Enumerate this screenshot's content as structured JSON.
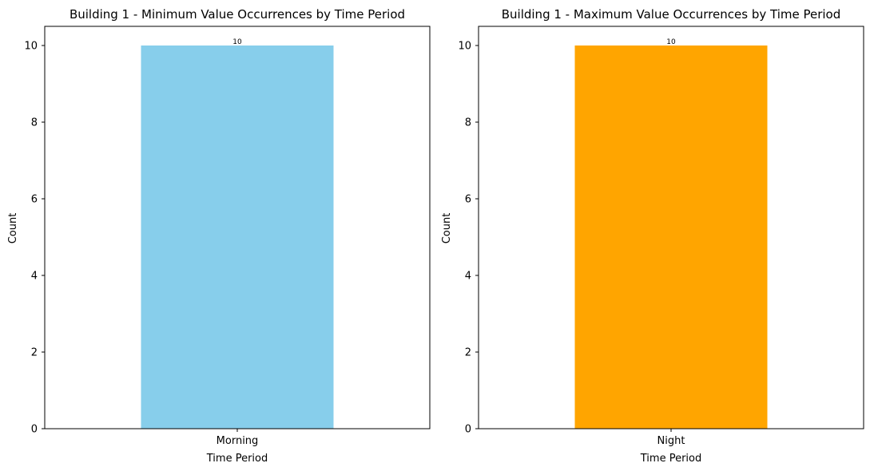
{
  "chart_data": [
    {
      "type": "bar",
      "title": "Building 1 - Minimum Value Occurrences by Time Period",
      "xlabel": "Time Period",
      "ylabel": "Count",
      "categories": [
        "Morning"
      ],
      "values": [
        10
      ],
      "data_labels": [
        "10"
      ],
      "ylim": [
        0,
        10.5
      ],
      "yticks": [
        0,
        2,
        4,
        6,
        8,
        10
      ],
      "bar_color": "#87ceeb",
      "grid": false,
      "legend": "none"
    },
    {
      "type": "bar",
      "title": "Building 1 - Maximum Value Occurrences by Time Period",
      "xlabel": "Time Period",
      "ylabel": "Count",
      "categories": [
        "Night"
      ],
      "values": [
        10
      ],
      "data_labels": [
        "10"
      ],
      "ylim": [
        0,
        10.5
      ],
      "yticks": [
        0,
        2,
        4,
        6,
        8,
        10
      ],
      "bar_color": "#ffa500",
      "grid": false,
      "legend": "none"
    }
  ]
}
